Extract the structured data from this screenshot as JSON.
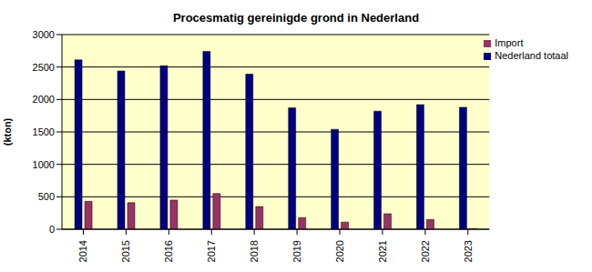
{
  "chart_data": {
    "type": "bar",
    "title": "Procesmatig gereinigde grond in Nederland",
    "y_label": "(kton)",
    "categories": [
      "2014",
      "2015",
      "2016",
      "2017",
      "2018",
      "2019",
      "2020",
      "2021",
      "2022",
      "2023"
    ],
    "series": [
      {
        "name": "Nederland totaal",
        "color": "#000080",
        "values": [
          2610,
          2440,
          2520,
          2740,
          2390,
          1870,
          1540,
          1820,
          1920,
          1880
        ]
      },
      {
        "name": "Import",
        "color": "#993366",
        "values": [
          430,
          410,
          450,
          550,
          350,
          180,
          110,
          240,
          150,
          10
        ]
      }
    ],
    "ylim": [
      0,
      3000
    ],
    "yticks": [
      0,
      500,
      1000,
      1500,
      2000,
      2500,
      3000
    ],
    "grid": true,
    "legend": "upper right"
  }
}
